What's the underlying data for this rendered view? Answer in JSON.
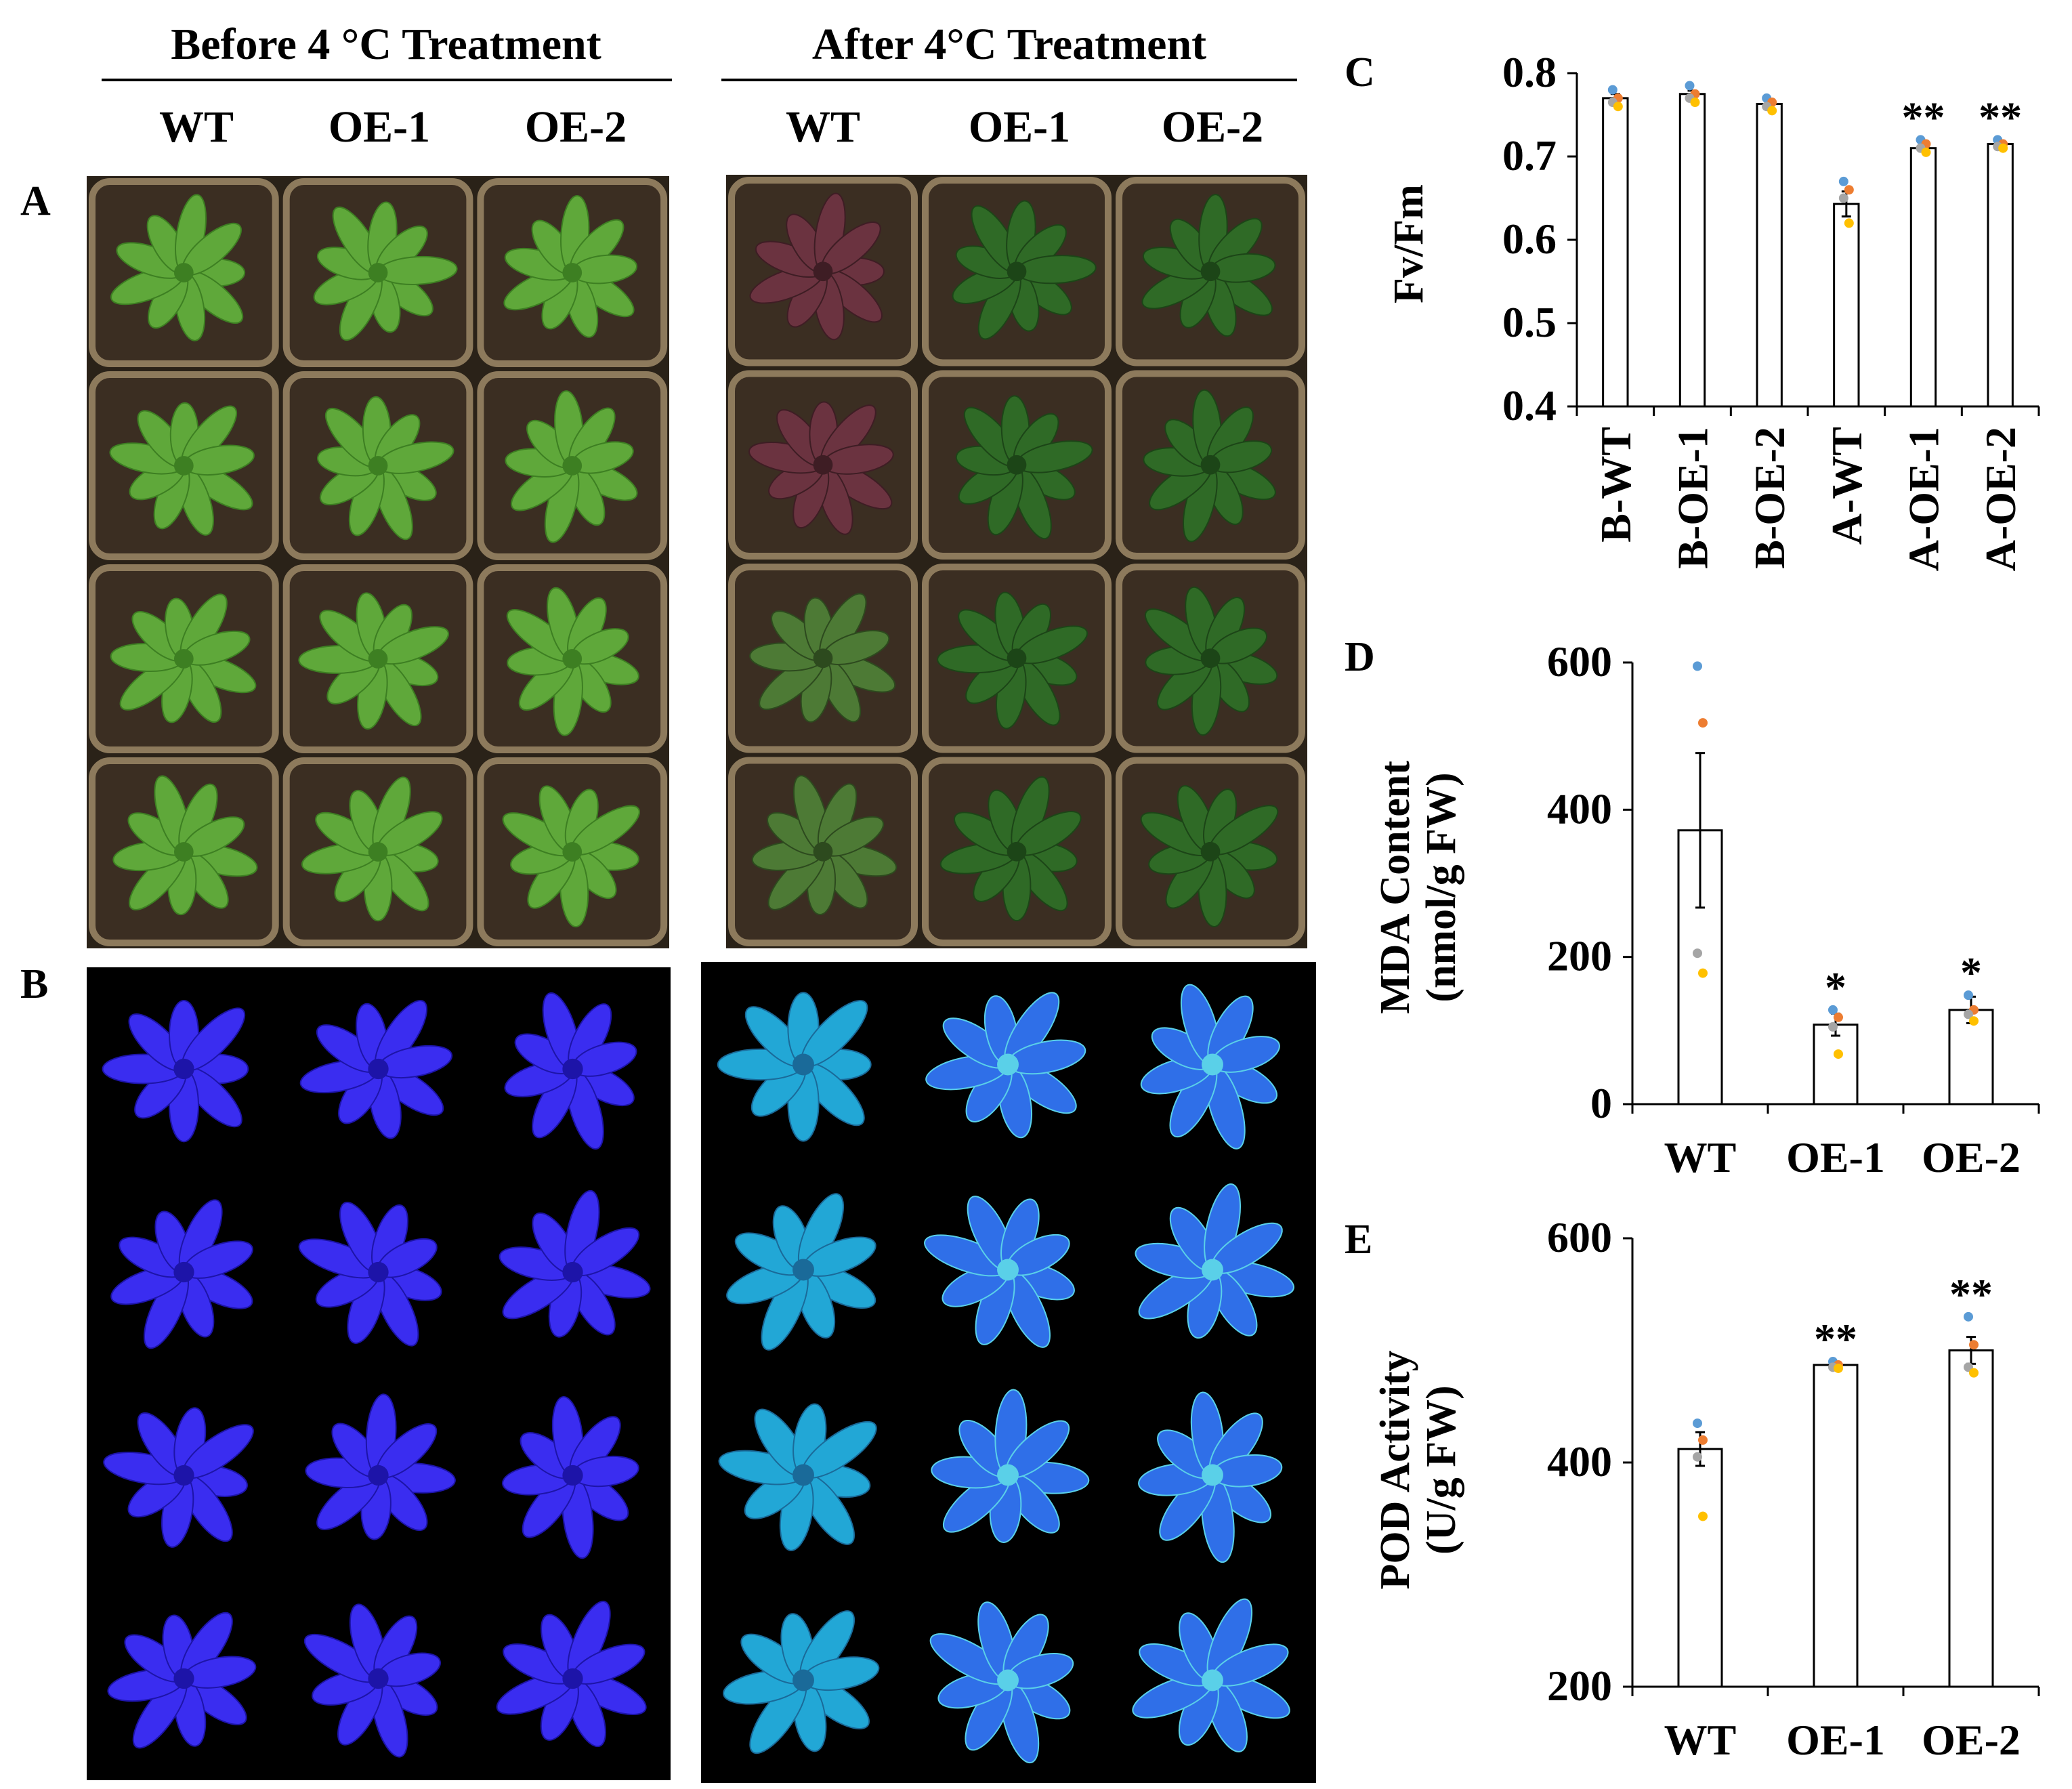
{
  "panel_labels": {
    "a": "A",
    "b": "B",
    "c": "C",
    "d": "D",
    "e": "E"
  },
  "photo_headers": {
    "before": "Before 4 °C Treatment",
    "after": "After 4°C Treatment",
    "genotypes": [
      "WT",
      "OE-1",
      "OE-2"
    ]
  },
  "colors": {
    "soil": "#3b2e22",
    "tray": "#8d7a5c",
    "leaf_green": "#5fa83a",
    "leaf_dark": "#2f6a26",
    "leaf_purple": "#6b3340",
    "fluor_bg": "#000000",
    "fluor_blue": "#3a2df0",
    "fluor_cyan": "#22a7d6",
    "dot_blue": "#5b9bd5",
    "dot_orange": "#ed7d31",
    "dot_gray": "#a5a5a5",
    "dot_yellow": "#ffc000"
  },
  "chart_data": [
    {
      "id": "C",
      "type": "bar",
      "ylabel": "Fv/Fm",
      "categories": [
        "B-WT",
        "B-OE-1",
        "B-OE-2",
        "A-WT",
        "A-OE-1",
        "A-OE-2"
      ],
      "values": [
        0.77,
        0.775,
        0.763,
        0.643,
        0.71,
        0.715
      ],
      "errors": [
        0.005,
        0.004,
        0.003,
        0.015,
        0.004,
        0.003
      ],
      "points": [
        [
          0.78,
          0.77,
          0.765,
          0.76
        ],
        [
          0.785,
          0.775,
          0.77,
          0.765
        ],
        [
          0.77,
          0.765,
          0.76,
          0.755
        ],
        [
          0.67,
          0.66,
          0.65,
          0.62
        ],
        [
          0.72,
          0.715,
          0.71,
          0.705
        ],
        [
          0.72,
          0.715,
          0.712,
          0.71
        ]
      ],
      "significance": [
        "",
        "",
        "",
        "",
        "**",
        "**"
      ],
      "ylim": [
        0.4,
        0.8
      ],
      "yticks": [
        "0.4",
        "0.5",
        "0.6",
        "0.7",
        "0.8"
      ],
      "ytick_values": [
        0.4,
        0.5,
        0.6,
        0.7,
        0.8
      ]
    },
    {
      "id": "D",
      "type": "bar",
      "ylabel": [
        "MDA Content",
        "(nmol/g FW)"
      ],
      "categories": [
        "WT",
        "OE-1",
        "OE-2"
      ],
      "values": [
        372,
        108,
        128
      ],
      "errors": [
        105,
        15,
        18
      ],
      "points": [
        [
          595,
          518,
          205,
          178
        ],
        [
          128,
          118,
          105,
          68
        ],
        [
          148,
          128,
          122,
          113
        ]
      ],
      "significance": [
        "",
        "*",
        "*"
      ],
      "ylim": [
        0,
        600
      ],
      "yticks": [
        "0",
        "200",
        "400",
        "600"
      ],
      "ytick_values": [
        0,
        200,
        400,
        600
      ]
    },
    {
      "id": "E",
      "type": "bar",
      "ylabel": [
        "POD Activity",
        "(U/g FW)"
      ],
      "categories": [
        "WT",
        "OE-1",
        "OE-2"
      ],
      "values": [
        412,
        487,
        500
      ],
      "errors": [
        15,
        2,
        12
      ],
      "points": [
        [
          435,
          420,
          405,
          352
        ],
        [
          490,
          487,
          485,
          484
        ],
        [
          530,
          505,
          485,
          480
        ]
      ],
      "significance": [
        "",
        "**",
        "**"
      ],
      "ylim": [
        200,
        600
      ],
      "yticks": [
        "200",
        "400",
        "600"
      ],
      "ytick_values": [
        200,
        400,
        600
      ]
    }
  ]
}
